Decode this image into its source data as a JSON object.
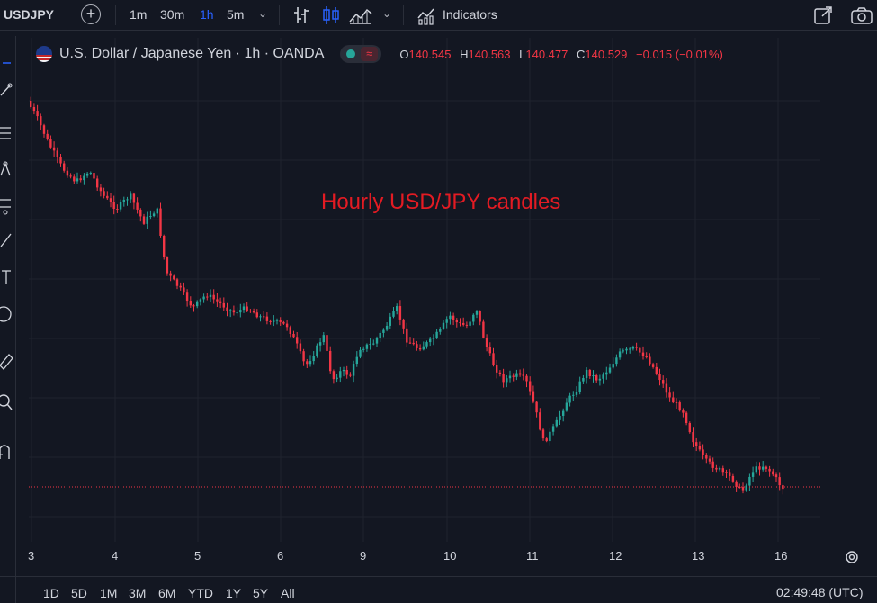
{
  "toolbar": {
    "symbol": "USDJPY",
    "intervals": [
      {
        "label": "1m",
        "active": false
      },
      {
        "label": "30m",
        "active": false
      },
      {
        "label": "1h",
        "active": true
      },
      {
        "label": "5m",
        "active": false
      }
    ],
    "indicators_label": "Indicators",
    "icons": [
      "plus-circle-icon",
      "chevron-down-icon",
      "bar-style-icon",
      "candle-style-icon",
      "area-style-icon",
      "chevron-down-icon",
      "indicators-icon",
      "fullscreen-icon",
      "camera-icon"
    ]
  },
  "legend": {
    "title": "U.S. Dollar / Japanese Yen · 1h · OANDA",
    "open_label": "O",
    "open": "140.545",
    "high_label": "H",
    "high": "140.563",
    "low_label": "L",
    "low": "140.477",
    "close_label": "C",
    "close": "140.529",
    "change": "−0.015 (−0.01%)"
  },
  "annotation": "Hourly USD/JPY candles",
  "chart_data": {
    "type": "candlestick",
    "x_ticks": [
      "3",
      "4",
      "5",
      "6",
      "9",
      "10",
      "11",
      "12",
      "13",
      "16"
    ],
    "up_color": "#26a69a",
    "down_color": "#f23645",
    "grid": true
  },
  "date_ranges": [
    "1D",
    "5D",
    "1M",
    "3M",
    "6M",
    "YTD",
    "1Y",
    "5Y",
    "All"
  ],
  "clock": "02:49:48 (UTC)",
  "colors": {
    "accent": "#2962ff",
    "up": "#26a69a",
    "down": "#f23645",
    "background": "#131722"
  }
}
